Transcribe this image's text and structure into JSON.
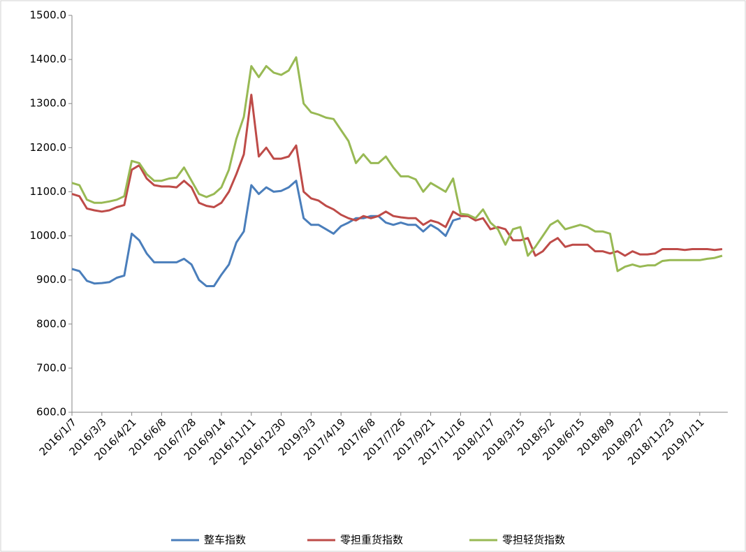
{
  "chart_data": {
    "type": "line",
    "categories": [
      "2016/1/7",
      null,
      null,
      null,
      "2016/3/3",
      null,
      null,
      null,
      "2016/4/21",
      null,
      null,
      null,
      "2016/6/8",
      null,
      null,
      null,
      "2016/7/28",
      null,
      null,
      null,
      "2016/9/14",
      null,
      null,
      null,
      "2016/11/11",
      null,
      null,
      null,
      "2016/12/30",
      null,
      null,
      null,
      "2019/3/3",
      null,
      null,
      null,
      "2017/4/19",
      null,
      null,
      null,
      "2017/6/8",
      null,
      null,
      null,
      "2017/7/26",
      null,
      null,
      null,
      "2017/9/21",
      null,
      null,
      null,
      "2017/11/16",
      null,
      null,
      null,
      "2018/1/17",
      null,
      null,
      null,
      "2018/3/15",
      null,
      null,
      null,
      "2018/5/2",
      null,
      null,
      null,
      "2018/6/15",
      null,
      null,
      null,
      "2018/8/9",
      null,
      null,
      null,
      "2018/9/27",
      null,
      null,
      null,
      "2018/11/23",
      null,
      null,
      null,
      "2019/1/11",
      null,
      null,
      null
    ],
    "series": [
      {
        "name": "整车指数",
        "color": "#4a7ebb",
        "values": [
          925,
          920,
          898,
          892,
          893,
          895,
          905,
          910,
          1005,
          990,
          960,
          940,
          940,
          940,
          940,
          948,
          935,
          900,
          886,
          886,
          912,
          935,
          985,
          1010,
          1115,
          1095,
          1110,
          1100,
          1102,
          1110,
          1125,
          1040,
          1025,
          1025,
          1015,
          1005,
          1022,
          1030,
          1040,
          1040,
          1045,
          1045,
          1030,
          1025,
          1030,
          1025,
          1025,
          1010,
          1025,
          1015,
          1000,
          1035,
          1040,
          null,
          null,
          null,
          null,
          null,
          null,
          null,
          null,
          null,
          null,
          null,
          null,
          null,
          null,
          null,
          null,
          null,
          null,
          null,
          null,
          null,
          null,
          null,
          null,
          null,
          null,
          null,
          null,
          null,
          null,
          null,
          null,
          null,
          null,
          null
        ]
      },
      {
        "name": "零担重货指数",
        "color": "#be4b48",
        "values": [
          1095,
          1090,
          1062,
          1058,
          1055,
          1058,
          1065,
          1070,
          1150,
          1160,
          1130,
          1115,
          1112,
          1112,
          1110,
          1125,
          1110,
          1075,
          1068,
          1065,
          1075,
          1100,
          1140,
          1185,
          1320,
          1180,
          1200,
          1175,
          1175,
          1180,
          1205,
          1100,
          1085,
          1080,
          1068,
          1060,
          1048,
          1040,
          1035,
          1045,
          1040,
          1045,
          1055,
          1045,
          1042,
          1040,
          1040,
          1025,
          1035,
          1030,
          1020,
          1055,
          1045,
          1045,
          1035,
          1040,
          1015,
          1020,
          1015,
          990,
          990,
          995,
          955,
          965,
          985,
          995,
          975,
          980,
          980,
          980,
          965,
          965,
          960,
          965,
          955,
          965,
          958,
          958,
          960,
          970,
          970,
          970,
          968,
          970,
          970,
          970,
          968,
          970
        ]
      },
      {
        "name": "零担轻货指数",
        "color": "#98b954",
        "values": [
          1120,
          1115,
          1082,
          1075,
          1075,
          1078,
          1082,
          1090,
          1170,
          1165,
          1140,
          1125,
          1125,
          1130,
          1132,
          1155,
          1125,
          1095,
          1088,
          1095,
          1110,
          1150,
          1220,
          1270,
          1385,
          1360,
          1385,
          1370,
          1365,
          1375,
          1405,
          1300,
          1280,
          1275,
          1268,
          1265,
          1240,
          1215,
          1165,
          1185,
          1165,
          1165,
          1180,
          1155,
          1135,
          1135,
          1128,
          1100,
          1120,
          1110,
          1100,
          1130,
          1050,
          1048,
          1040,
          1060,
          1030,
          1015,
          980,
          1015,
          1020,
          955,
          975,
          1000,
          1025,
          1035,
          1015,
          1020,
          1025,
          1020,
          1010,
          1010,
          1005,
          920,
          930,
          935,
          930,
          933,
          933,
          943,
          945,
          945,
          945,
          945,
          945,
          948,
          950,
          955
        ]
      }
    ],
    "ylim": [
      600,
      1500
    ],
    "yticks": [
      {
        "value": 600,
        "label": "600.0"
      },
      {
        "value": 700,
        "label": "700.0"
      },
      {
        "value": 800,
        "label": "800.0"
      },
      {
        "value": 900,
        "label": "900.0"
      },
      {
        "value": 1000,
        "label": "1000.0"
      },
      {
        "value": 1100,
        "label": "1100.0"
      },
      {
        "value": 1200,
        "label": "1200.0"
      },
      {
        "value": 1300,
        "label": "1300.0"
      },
      {
        "value": 1400,
        "label": "1400.0"
      },
      {
        "value": 1500,
        "label": "1500.0"
      }
    ],
    "legend": "bottom"
  }
}
